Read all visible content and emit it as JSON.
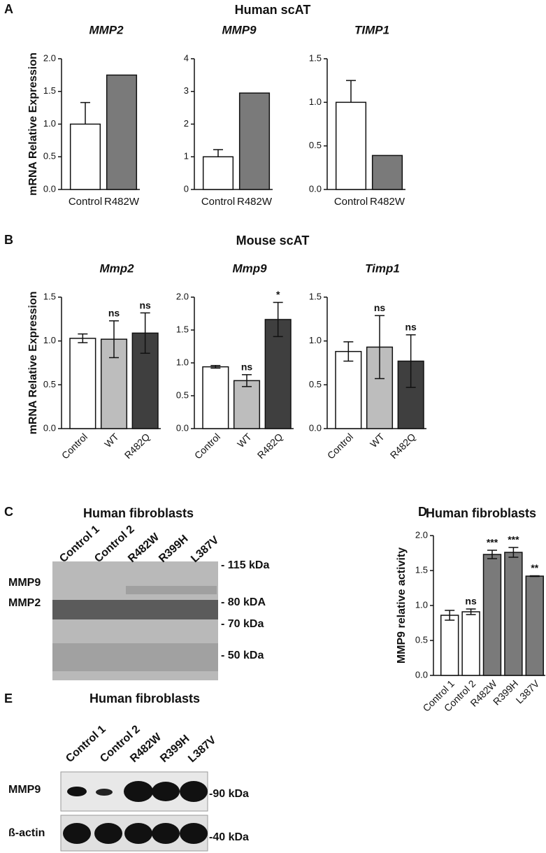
{
  "chart_data": [
    {
      "type": "bar",
      "title": "MMP2",
      "ylabel": "mRNA Relative Expression",
      "categories": [
        "Control",
        "R482W"
      ],
      "values": [
        1.0,
        1.75
      ],
      "errors": [
        0.33,
        null
      ],
      "error_bars": "upper",
      "colors": [
        "#ffffff",
        "#7a7a7a"
      ],
      "ylim": [
        0,
        2
      ],
      "yticks": [
        {
          "value": 0,
          "label": "0.0"
        },
        0.5,
        {
          "value": 1,
          "label": "1.0"
        },
        1.5,
        {
          "value": 2,
          "label": "2.0"
        }
      ]
    },
    {
      "type": "bar",
      "title": "MMP9",
      "categories": [
        "Control",
        "R482W"
      ],
      "values": [
        1.0,
        2.95
      ],
      "errors": [
        0.22,
        null
      ],
      "error_bars": "upper",
      "colors": [
        "#ffffff",
        "#7a7a7a"
      ],
      "ylim": [
        0,
        4
      ],
      "yticks": [
        0,
        1,
        2,
        3,
        4
      ]
    },
    {
      "type": "bar",
      "title": "TIMP1",
      "categories": [
        "Control",
        "R482W"
      ],
      "values": [
        1.0,
        0.39
      ],
      "errors": [
        0.25,
        null
      ],
      "error_bars": "upper",
      "colors": [
        "#ffffff",
        "#7a7a7a"
      ],
      "ylim": [
        0,
        1.5
      ],
      "yticks": [
        {
          "value": 0,
          "label": "0.0"
        },
        0.5,
        {
          "value": 1,
          "label": "1.0"
        },
        1.5
      ]
    },
    {
      "type": "bar",
      "title": "Mmp2",
      "ylabel": "mRNA Relative Expression",
      "categories": [
        "Control",
        "WT",
        "R482Q"
      ],
      "values": [
        1.03,
        1.02,
        1.09
      ],
      "errors": [
        0.05,
        0.21,
        0.23
      ],
      "error_bars": "both",
      "annotations": [
        null,
        "ns",
        "ns"
      ],
      "colors": [
        "#ffffff",
        "#bdbdbd",
        "#3f3f3f"
      ],
      "ylim": [
        0,
        1.5
      ],
      "yticks": [
        {
          "value": 0,
          "label": "0.0"
        },
        0.5,
        {
          "value": 1,
          "label": "1.0"
        },
        1.5
      ]
    },
    {
      "type": "bar",
      "title": "Mmp9",
      "categories": [
        "Control",
        "WT",
        "R482Q"
      ],
      "values": [
        0.94,
        0.73,
        1.66
      ],
      "errors": [
        0.02,
        0.09,
        0.26
      ],
      "error_bars": "both",
      "annotations": [
        null,
        "ns",
        "*"
      ],
      "colors": [
        "#ffffff",
        "#bdbdbd",
        "#3f3f3f"
      ],
      "ylim": [
        0,
        2
      ],
      "yticks": [
        {
          "value": 0,
          "label": "0.0"
        },
        0.5,
        {
          "value": 1,
          "label": "1.0"
        },
        1.5,
        {
          "value": 2,
          "label": "2.0"
        }
      ]
    },
    {
      "type": "bar",
      "title": "Timp1",
      "categories": [
        "Control",
        "WT",
        "R482Q"
      ],
      "values": [
        0.88,
        0.93,
        0.77
      ],
      "errors": [
        0.11,
        0.36,
        0.3
      ],
      "error_bars": "both",
      "annotations": [
        null,
        "ns",
        "ns"
      ],
      "colors": [
        "#ffffff",
        "#bdbdbd",
        "#3f3f3f"
      ],
      "ylim": [
        0,
        1.5
      ],
      "yticks": [
        {
          "value": 0,
          "label": "0.0"
        },
        0.5,
        {
          "value": 1,
          "label": "1.0"
        },
        1.5
      ]
    },
    {
      "type": "bar",
      "title": "Human fibroblasts",
      "ylabel": "MMP9 relative activity",
      "categories": [
        "Control 1",
        "Control 2",
        "R482W",
        "R399H",
        "L387V"
      ],
      "values": [
        0.86,
        0.91,
        1.73,
        1.76,
        1.42
      ],
      "errors": [
        0.07,
        0.04,
        0.06,
        0.07,
        0.005
      ],
      "error_bars": "both",
      "annotations": [
        null,
        "ns",
        "***",
        "***",
        "**"
      ],
      "colors": [
        "#ffffff",
        "#ffffff",
        "#7a7a7a",
        "#7a7a7a",
        "#7a7a7a"
      ],
      "ylim": [
        0,
        2
      ],
      "yticks": [
        {
          "value": 0,
          "label": "0.0"
        },
        0.5,
        {
          "value": 1,
          "label": "1.0"
        },
        1.5,
        {
          "value": 2,
          "label": "2.0"
        }
      ]
    }
  ],
  "figure": {
    "panel_labels": [
      "A",
      "B",
      "C",
      "D",
      "E"
    ],
    "panel_a_title": "Human scAT",
    "panel_b_title": "Mouse scAT",
    "blot_c": {
      "title": "Human fibroblasts",
      "lanes": [
        "Control 1",
        "Control 2",
        "R482W",
        "R399H",
        "L387V"
      ],
      "bands": [
        "MMP9",
        "MMP2"
      ],
      "markers": [
        "- 115 kDa",
        "- 80 kDA",
        "- 70 kDa",
        "- 50 kDa"
      ]
    },
    "blot_e": {
      "title": "Human fibroblasts",
      "lanes": [
        "Control 1",
        "Control 2",
        "R482W",
        "R399H",
        "L387V"
      ],
      "bands": [
        "MMP9",
        "ß-actin"
      ],
      "markers": [
        "-90 kDa",
        "-40 kDa"
      ]
    }
  }
}
